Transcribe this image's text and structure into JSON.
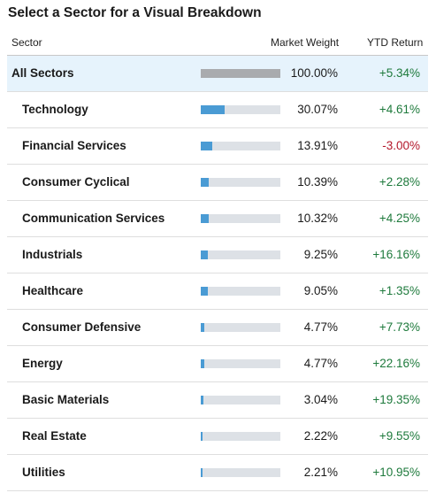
{
  "title": "Select a Sector for a Visual Breakdown",
  "table": {
    "columns": [
      "Sector",
      "Market Weight",
      "YTD Return"
    ],
    "bar_scale": [
      0,
      100
    ],
    "rows": [
      {
        "sector": "All Sectors",
        "weight": {
          "value": 100.0,
          "label": "100.00%"
        },
        "ytd": "+5.34%"
      },
      {
        "sector": "Technology",
        "weight": {
          "value": 30.07,
          "label": "30.07%"
        },
        "ytd": "+4.61%"
      },
      {
        "sector": "Financial Services",
        "weight": {
          "value": 13.91,
          "label": "13.91%"
        },
        "ytd": "-3.00%"
      },
      {
        "sector": "Consumer Cyclical",
        "weight": {
          "value": 10.39,
          "label": "10.39%"
        },
        "ytd": "+2.28%"
      },
      {
        "sector": "Communication Services",
        "weight": {
          "value": 10.32,
          "label": "10.32%"
        },
        "ytd": "+4.25%"
      },
      {
        "sector": "Industrials",
        "weight": {
          "value": 9.25,
          "label": "9.25%"
        },
        "ytd": "+16.16%"
      },
      {
        "sector": "Healthcare",
        "weight": {
          "value": 9.05,
          "label": "9.05%"
        },
        "ytd": "+1.35%"
      },
      {
        "sector": "Consumer Defensive",
        "weight": {
          "value": 4.77,
          "label": "4.77%"
        },
        "ytd": "+7.73%"
      },
      {
        "sector": "Energy",
        "weight": {
          "value": 4.77,
          "label": "4.77%"
        },
        "ytd": "+22.16%"
      },
      {
        "sector": "Basic Materials",
        "weight": {
          "value": 3.04,
          "label": "3.04%"
        },
        "ytd": "+19.35%"
      },
      {
        "sector": "Real Estate",
        "weight": {
          "value": 2.22,
          "label": "2.22%"
        },
        "ytd": "+9.55%"
      },
      {
        "sector": "Utilities",
        "weight": {
          "value": 2.21,
          "label": "2.21%"
        },
        "ytd": "+10.95%"
      }
    ]
  }
}
